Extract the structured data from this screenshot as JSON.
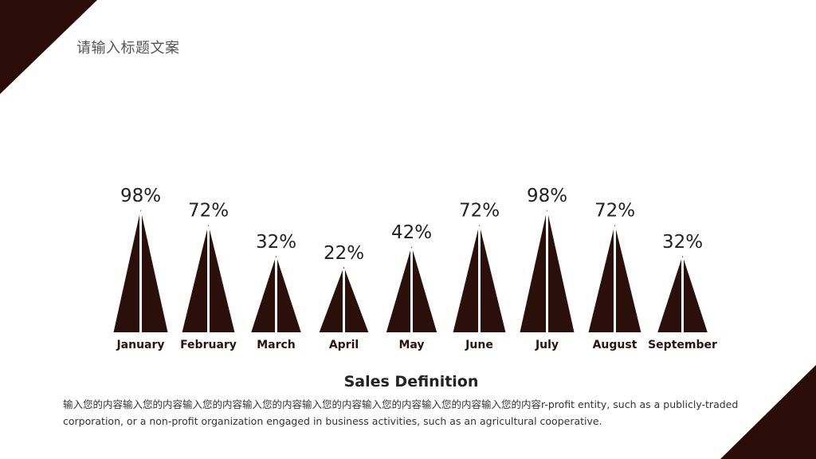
{
  "title": "请输入标题文案",
  "colors": {
    "accent": "#2a0d08",
    "bar": "#2b0f0a",
    "background": "#ffffff"
  },
  "chart_data": {
    "type": "bar",
    "categories": [
      "January",
      "February",
      "March",
      "April",
      "May",
      "June",
      "July",
      "August",
      "September"
    ],
    "values": [
      98,
      72,
      32,
      22,
      42,
      72,
      98,
      72,
      32
    ],
    "value_labels": [
      "98%",
      "72%",
      "32%",
      "22%",
      "42%",
      "72%",
      "98%",
      "72%",
      "32%"
    ],
    "title": "",
    "xlabel": "",
    "ylabel": "",
    "ylim": [
      0,
      100
    ],
    "grid": false,
    "legend": "none"
  },
  "section": {
    "title": "Sales Definition",
    "body": "输入您的内容输入您的内容输入您的内容输入您的内容输入您的内容输入您的内容输入您的内容输入您的内容r-profit  entity, such as a publicly-traded corporation, or a non-profit organization engaged in business activities, such as an agricultural cooperative."
  }
}
